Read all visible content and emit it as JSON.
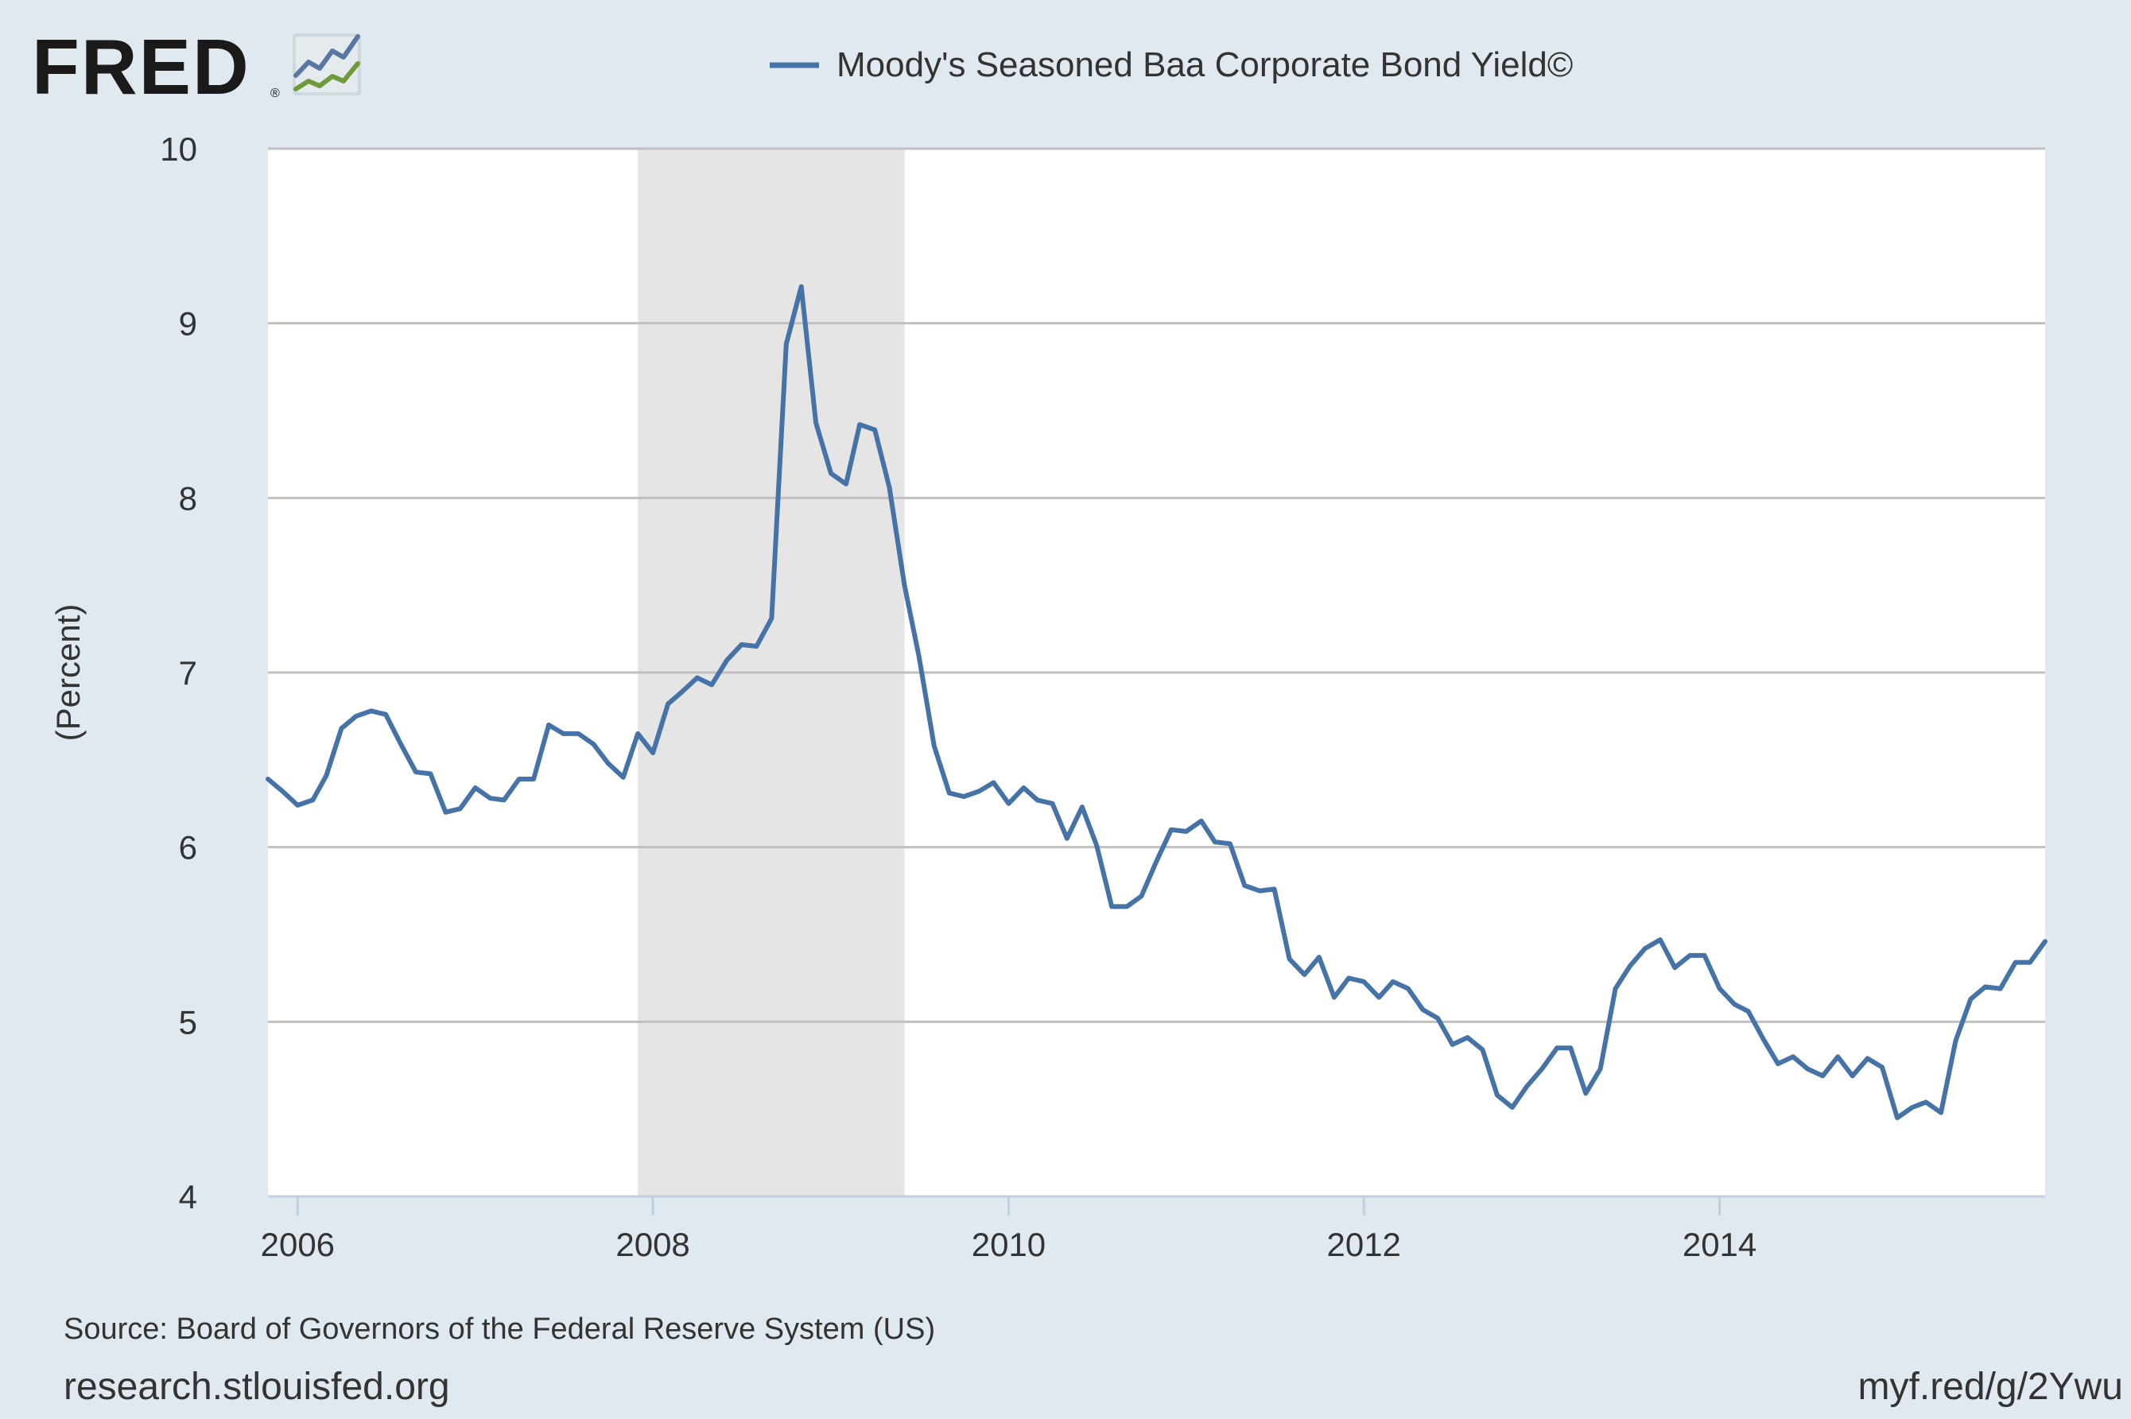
{
  "branding": {
    "logo_text": "FRED",
    "logo_icon": "fred-chart-logo-icon"
  },
  "source_line": "Source: Board of Governors of the Federal Reserve System (US)",
  "site_url": "research.stlouisfed.org",
  "short_link": "myf.red/g/2Ywu",
  "colors": {
    "background": "#e1e9f0",
    "plot_background": "#ffffff",
    "series": "#4572a7",
    "recession_shade": "#e5e5e5",
    "grid": "#c0c0c0",
    "text": "#333333"
  },
  "chart_data": {
    "type": "line",
    "title": "",
    "xlabel": "",
    "ylabel": "(Percent)",
    "ylim": [
      4,
      10
    ],
    "xlim": [
      "2005-11-01",
      "2015-11-01"
    ],
    "yticks": [
      4,
      5,
      6,
      7,
      8,
      9,
      10
    ],
    "xticks": [
      "2006",
      "2008",
      "2010",
      "2012",
      "2014"
    ],
    "grid": true,
    "legend_position": "top-center",
    "recession_periods": [
      [
        "2007-12-01",
        "2009-06-01"
      ]
    ],
    "series": [
      {
        "name": "Moody's Seasoned Baa Corporate Bond Yield©",
        "color": "#4572a7",
        "x": [
          "2005-11-01",
          "2005-12-01",
          "2006-01-01",
          "2006-02-01",
          "2006-03-01",
          "2006-04-01",
          "2006-05-01",
          "2006-06-01",
          "2006-07-01",
          "2006-08-01",
          "2006-09-01",
          "2006-10-01",
          "2006-11-01",
          "2006-12-01",
          "2007-01-01",
          "2007-02-01",
          "2007-03-01",
          "2007-04-01",
          "2007-05-01",
          "2007-06-01",
          "2007-07-01",
          "2007-08-01",
          "2007-09-01",
          "2007-10-01",
          "2007-11-01",
          "2007-12-01",
          "2008-01-01",
          "2008-02-01",
          "2008-03-01",
          "2008-04-01",
          "2008-05-01",
          "2008-06-01",
          "2008-07-01",
          "2008-08-01",
          "2008-09-01",
          "2008-10-01",
          "2008-11-01",
          "2008-12-01",
          "2009-01-01",
          "2009-02-01",
          "2009-03-01",
          "2009-04-01",
          "2009-05-01",
          "2009-06-01",
          "2009-07-01",
          "2009-08-01",
          "2009-09-01",
          "2009-10-01",
          "2009-11-01",
          "2009-12-01",
          "2010-01-01",
          "2010-02-01",
          "2010-03-01",
          "2010-04-01",
          "2010-05-01",
          "2010-06-01",
          "2010-07-01",
          "2010-08-01",
          "2010-09-01",
          "2010-10-01",
          "2010-11-01",
          "2010-12-01",
          "2011-01-01",
          "2011-02-01",
          "2011-03-01",
          "2011-04-01",
          "2011-05-01",
          "2011-06-01",
          "2011-07-01",
          "2011-08-01",
          "2011-09-01",
          "2011-10-01",
          "2011-11-01",
          "2011-12-01",
          "2012-01-01",
          "2012-02-01",
          "2012-03-01",
          "2012-04-01",
          "2012-05-01",
          "2012-06-01",
          "2012-07-01",
          "2012-08-01",
          "2012-09-01",
          "2012-10-01",
          "2012-11-01",
          "2012-12-01",
          "2013-01-01",
          "2013-02-01",
          "2013-03-01",
          "2013-04-01",
          "2013-05-01",
          "2013-06-01",
          "2013-07-01",
          "2013-08-01",
          "2013-09-01",
          "2013-10-01",
          "2013-11-01",
          "2013-12-01",
          "2014-01-01",
          "2014-02-01",
          "2014-03-01",
          "2014-04-01",
          "2014-05-01",
          "2014-06-01",
          "2014-07-01",
          "2014-08-01",
          "2014-09-01",
          "2014-10-01",
          "2014-11-01",
          "2014-12-01",
          "2015-01-01",
          "2015-02-01",
          "2015-03-01",
          "2015-04-01",
          "2015-05-01",
          "2015-06-01",
          "2015-07-01",
          "2015-08-01",
          "2015-09-01",
          "2015-10-01",
          "2015-11-01"
        ],
        "values": [
          6.39,
          6.32,
          6.24,
          6.27,
          6.41,
          6.68,
          6.75,
          6.78,
          6.76,
          6.59,
          6.43,
          6.42,
          6.2,
          6.22,
          6.34,
          6.28,
          6.27,
          6.39,
          6.39,
          6.7,
          6.65,
          6.65,
          6.59,
          6.48,
          6.4,
          6.65,
          6.54,
          6.82,
          6.89,
          6.97,
          6.93,
          7.07,
          7.16,
          7.15,
          7.31,
          8.88,
          9.21,
          8.43,
          8.14,
          8.08,
          8.42,
          8.39,
          8.06,
          7.5,
          7.09,
          6.58,
          6.31,
          6.29,
          6.32,
          6.37,
          6.25,
          6.34,
          6.27,
          6.25,
          6.05,
          6.23,
          6.01,
          5.66,
          5.66,
          5.72,
          5.92,
          6.1,
          6.09,
          6.15,
          6.03,
          6.02,
          5.78,
          5.75,
          5.76,
          5.36,
          5.27,
          5.37,
          5.14,
          5.25,
          5.23,
          5.14,
          5.23,
          5.19,
          5.07,
          5.02,
          4.87,
          4.91,
          4.84,
          4.58,
          4.51,
          4.63,
          4.73,
          4.85,
          4.85,
          4.59,
          4.73,
          5.19,
          5.32,
          5.42,
          5.47,
          5.31,
          5.38,
          5.38,
          5.19,
          5.1,
          5.06,
          4.9,
          4.76,
          4.8,
          4.73,
          4.69,
          4.8,
          4.69,
          4.79,
          4.74,
          4.45,
          4.51,
          4.54,
          4.48,
          4.89,
          5.13,
          5.2,
          5.19,
          5.34,
          5.34,
          5.46
        ]
      }
    ]
  }
}
